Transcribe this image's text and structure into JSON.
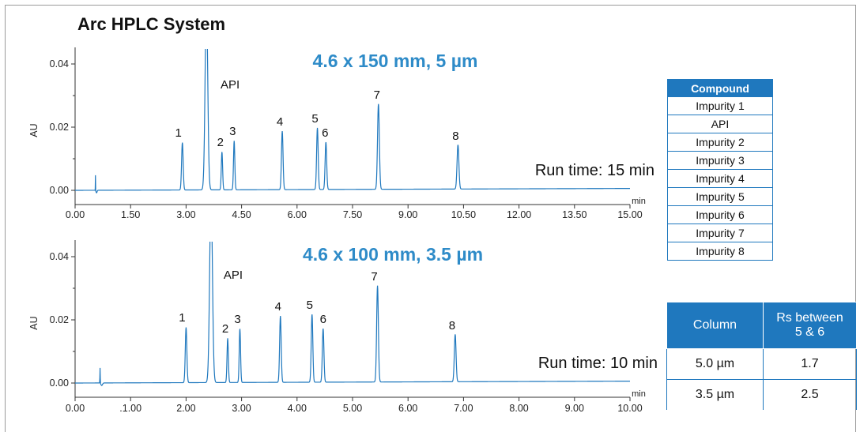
{
  "title": "Arc HPLC System",
  "chart_data": [
    {
      "type": "line",
      "subtitle": "4.6 x 150 mm, 5 µm",
      "ylabel": "AU",
      "xunit": "min",
      "xlim": [
        0,
        15
      ],
      "ylim": [
        -0.003,
        0.044
      ],
      "xticks": [
        "0.00",
        "1.50",
        "3.00",
        "4.50",
        "6.00",
        "7.50",
        "9.00",
        "10.50",
        "12.00",
        "13.50",
        "15.00"
      ],
      "yticks": [
        "0.00",
        "0.02",
        "0.04"
      ],
      "run_time": "Run time: 15 min",
      "peaks": [
        {
          "label": "1",
          "t": 2.9,
          "h": 0.015,
          "w": 0.03
        },
        {
          "label": "API",
          "t": 3.55,
          "h": 0.06,
          "w": 0.05
        },
        {
          "label": "2",
          "t": 3.97,
          "h": 0.012,
          "w": 0.025
        },
        {
          "label": "3",
          "t": 4.3,
          "h": 0.0155,
          "w": 0.025
        },
        {
          "label": "4",
          "t": 5.6,
          "h": 0.0185,
          "w": 0.03
        },
        {
          "label": "5",
          "t": 6.55,
          "h": 0.0195,
          "w": 0.03
        },
        {
          "label": "6",
          "t": 6.78,
          "h": 0.015,
          "w": 0.03
        },
        {
          "label": "7",
          "t": 8.2,
          "h": 0.027,
          "w": 0.035
        },
        {
          "label": "8",
          "t": 10.35,
          "h": 0.014,
          "w": 0.035
        }
      ]
    },
    {
      "type": "line",
      "subtitle": "4.6 x 100 mm, 3.5 µm",
      "ylabel": "AU",
      "xunit": "min",
      "xlim": [
        0,
        10
      ],
      "ylim": [
        -0.003,
        0.044
      ],
      "xticks": [
        "0.00",
        ".1.00",
        "2.00",
        "3.00",
        "4.00",
        "5.00",
        "6.00",
        "7.00",
        "8.00",
        "9.00",
        "10.00"
      ],
      "yticks": [
        "0.00",
        "0.02",
        "0.04"
      ],
      "run_time": "Run time: 10 min",
      "peaks": [
        {
          "label": "1",
          "t": 2.0,
          "h": 0.0175,
          "w": 0.02
        },
        {
          "label": "API",
          "t": 2.45,
          "h": 0.06,
          "w": 0.035
        },
        {
          "label": "2",
          "t": 2.75,
          "h": 0.014,
          "w": 0.017
        },
        {
          "label": "3",
          "t": 2.97,
          "h": 0.017,
          "w": 0.017
        },
        {
          "label": "4",
          "t": 3.7,
          "h": 0.021,
          "w": 0.02
        },
        {
          "label": "5",
          "t": 4.27,
          "h": 0.0215,
          "w": 0.02
        },
        {
          "label": "6",
          "t": 4.47,
          "h": 0.017,
          "w": 0.02
        },
        {
          "label": "7",
          "t": 5.45,
          "h": 0.0305,
          "w": 0.022
        },
        {
          "label": "8",
          "t": 6.85,
          "h": 0.015,
          "w": 0.022
        }
      ]
    }
  ],
  "compound_table": {
    "header": "Compound",
    "rows": [
      "Impurity 1",
      "API",
      "Impurity 2",
      "Impurity 3",
      "Impurity 4",
      "Impurity 5",
      "Impurity 6",
      "Impurity 7",
      "Impurity 8"
    ]
  },
  "rs_table": {
    "col1": "Column",
    "col2_line1": "Rs between",
    "col2_line2": "5 & 6",
    "rows": [
      {
        "column": "5.0 µm",
        "rs": "1.7"
      },
      {
        "column": "3.5 µm",
        "rs": "2.5"
      }
    ]
  },
  "colors": {
    "trace": "#1f78be",
    "subtitle": "#2e8bc8",
    "table_header": "#1f78be"
  }
}
